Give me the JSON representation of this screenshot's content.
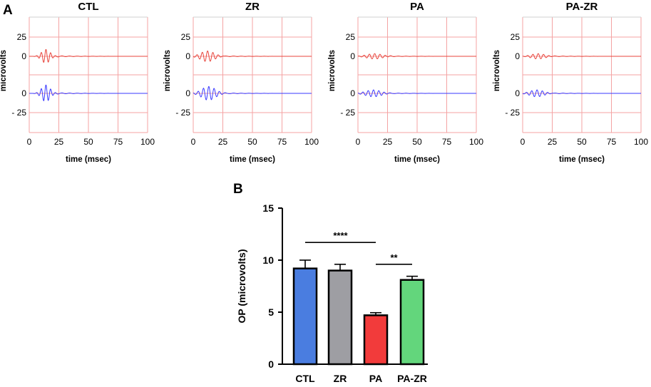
{
  "panel_a_label": "A",
  "panel_b_label": "B",
  "chart_data": [
    {
      "type": "line",
      "title": "CTL",
      "xlabel": "time (msec)",
      "ylabel": "microvolts",
      "xlim": [
        0,
        100
      ],
      "x_ticks": [
        "0",
        "25",
        "50",
        "75",
        "100"
      ],
      "y_ticks": [
        "25",
        "0",
        "0",
        "- 25"
      ],
      "grid": true,
      "series": [
        {
          "color": "#e8453c",
          "baseline": 0,
          "bursts": [
            {
              "center": 14,
              "width": 5,
              "amplitude": 9,
              "period": 4.0
            }
          ],
          "tail": {
            "amplitude": 0.8,
            "from": 22
          }
        },
        {
          "color": "#3a3aff",
          "baseline": 0,
          "bursts": [
            {
              "center": 14,
              "width": 5,
              "amplitude": 11,
              "period": 4.0
            }
          ],
          "tail": {
            "amplitude": 0.8,
            "from": 22
          }
        }
      ]
    },
    {
      "type": "line",
      "title": "ZR",
      "xlabel": "time (msec)",
      "ylabel": "microvolts",
      "xlim": [
        0,
        100
      ],
      "x_ticks": [
        "0",
        "25",
        "50",
        "75",
        "100"
      ],
      "y_ticks": [
        "25",
        "0",
        "0",
        "- 25"
      ],
      "grid": true,
      "series": [
        {
          "color": "#e8453c",
          "baseline": 0,
          "bursts": [
            {
              "center": 12,
              "width": 8,
              "amplitude": 7,
              "period": 4.5
            }
          ],
          "tail": {
            "amplitude": 0.6,
            "from": 26
          }
        },
        {
          "color": "#3a3aff",
          "baseline": 0,
          "bursts": [
            {
              "center": 13,
              "width": 8,
              "amplitude": 9,
              "period": 4.5
            }
          ],
          "tail": {
            "amplitude": 0.6,
            "from": 26
          }
        }
      ]
    },
    {
      "type": "line",
      "title": "PA",
      "xlabel": "time (msec)",
      "ylabel": "microvolts",
      "xlim": [
        0,
        100
      ],
      "x_ticks": [
        "0",
        "25",
        "50",
        "75",
        "100"
      ],
      "y_ticks": [
        "25",
        "0",
        "0",
        "- 25"
      ],
      "grid": true,
      "series": [
        {
          "color": "#e8453c",
          "baseline": 0,
          "bursts": [
            {
              "center": 14,
              "width": 9,
              "amplitude": 3.5,
              "period": 4.5
            }
          ],
          "tail": {
            "amplitude": 0.5,
            "from": 26
          }
        },
        {
          "color": "#3a3aff",
          "baseline": 0,
          "bursts": [
            {
              "center": 13,
              "width": 9,
              "amplitude": 4.5,
              "period": 4.5
            }
          ],
          "tail": {
            "amplitude": 0.5,
            "from": 26
          }
        }
      ]
    },
    {
      "type": "line",
      "title": "PA-ZR",
      "xlabel": "time (msec)",
      "ylabel": "microvolts",
      "xlim": [
        0,
        100
      ],
      "x_ticks": [
        "0",
        "25",
        "50",
        "75",
        "100"
      ],
      "y_ticks": [
        "25",
        "0",
        "0",
        "- 25"
      ],
      "grid": true,
      "series": [
        {
          "color": "#e8453c",
          "baseline": 0,
          "bursts": [
            {
              "center": 13,
              "width": 8,
              "amplitude": 3.5,
              "period": 4.5
            }
          ],
          "tail": {
            "amplitude": 0.5,
            "from": 26
          }
        },
        {
          "color": "#3a3aff",
          "baseline": 0,
          "bursts": [
            {
              "center": 12,
              "width": 8,
              "amplitude": 4.5,
              "period": 4.5
            }
          ],
          "tail": {
            "amplitude": 0.5,
            "from": 26
          }
        }
      ]
    },
    {
      "type": "bar",
      "categories": [
        "CTL",
        "ZR",
        "PA",
        "PA-ZR"
      ],
      "values": [
        9.2,
        9.0,
        4.7,
        8.1
      ],
      "errors": [
        0.8,
        0.6,
        0.25,
        0.35
      ],
      "colors": [
        "#4a7de0",
        "#9e9ea3",
        "#f23b3b",
        "#63d67c"
      ],
      "ylabel": "OP (microvolts)",
      "ylim": [
        0,
        15
      ],
      "y_ticks": [
        0,
        5,
        10,
        15
      ],
      "significance": [
        {
          "from": "CTL",
          "to": "PA",
          "label": "****",
          "y": 11.7
        },
        {
          "from": "PA",
          "to": "PA-ZR",
          "label": "**",
          "y": 9.6
        }
      ]
    }
  ]
}
